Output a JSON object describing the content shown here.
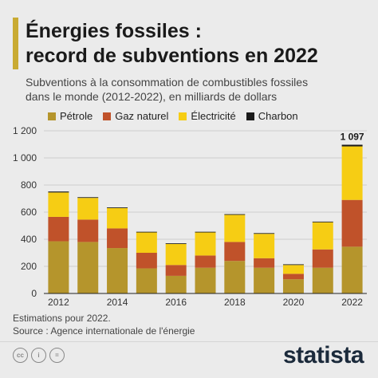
{
  "header": {
    "title_line1": "Énergies fossiles :",
    "title_line2": "record de subventions en 2022",
    "subtitle_line1": "Subventions à la consommation de combustibles fossiles",
    "subtitle_line2": "dans le monde (2012-2022), en milliards de dollars"
  },
  "colors": {
    "accent": "#c9ab33",
    "petrole": "#b5952c",
    "gaz": "#c0522a",
    "electricite": "#f6cd14",
    "charbon": "#1a1a1a"
  },
  "legend": {
    "petrole": "Pétrole",
    "gaz": "Gaz naturel",
    "electricite": "Électricité",
    "charbon": "Charbon"
  },
  "chart_data": {
    "type": "bar",
    "stacked": true,
    "categories": [
      "2012",
      "2013",
      "2014",
      "2015",
      "2016",
      "2017",
      "2018",
      "2019",
      "2020",
      "2021",
      "2022"
    ],
    "x_tick_labels": [
      "2012",
      "",
      "2014",
      "",
      "2016",
      "",
      "2018",
      "",
      "2020",
      "",
      "2022"
    ],
    "series": [
      {
        "name": "Pétrole",
        "values": [
          385,
          380,
          335,
          185,
          130,
          190,
          240,
          190,
          105,
          190,
          345
        ]
      },
      {
        "name": "Gaz naturel",
        "values": [
          180,
          165,
          145,
          115,
          80,
          90,
          140,
          70,
          40,
          135,
          345
        ]
      },
      {
        "name": "Électricité",
        "values": [
          180,
          160,
          150,
          150,
          155,
          170,
          200,
          180,
          65,
          200,
          395
        ]
      },
      {
        "name": "Charbon",
        "values": [
          7,
          5,
          5,
          5,
          5,
          5,
          5,
          5,
          5,
          5,
          12
        ]
      }
    ],
    "yticks": [
      0,
      200,
      400,
      600,
      800,
      1000,
      1200
    ],
    "ytick_labels": [
      "0",
      "200",
      "400",
      "600",
      "800",
      "1 000",
      "1 200"
    ],
    "ylim": [
      0,
      1200
    ],
    "annotation": {
      "category": "2022",
      "label": "1 097"
    },
    "grid": true,
    "legend_position": "top"
  },
  "footnote": {
    "line1": "Estimations pour 2022.",
    "line2": "Source : Agence internationale de l'énergie"
  },
  "footer": {
    "logo": "statista",
    "cc_icons": [
      "cc",
      "i",
      "="
    ]
  }
}
